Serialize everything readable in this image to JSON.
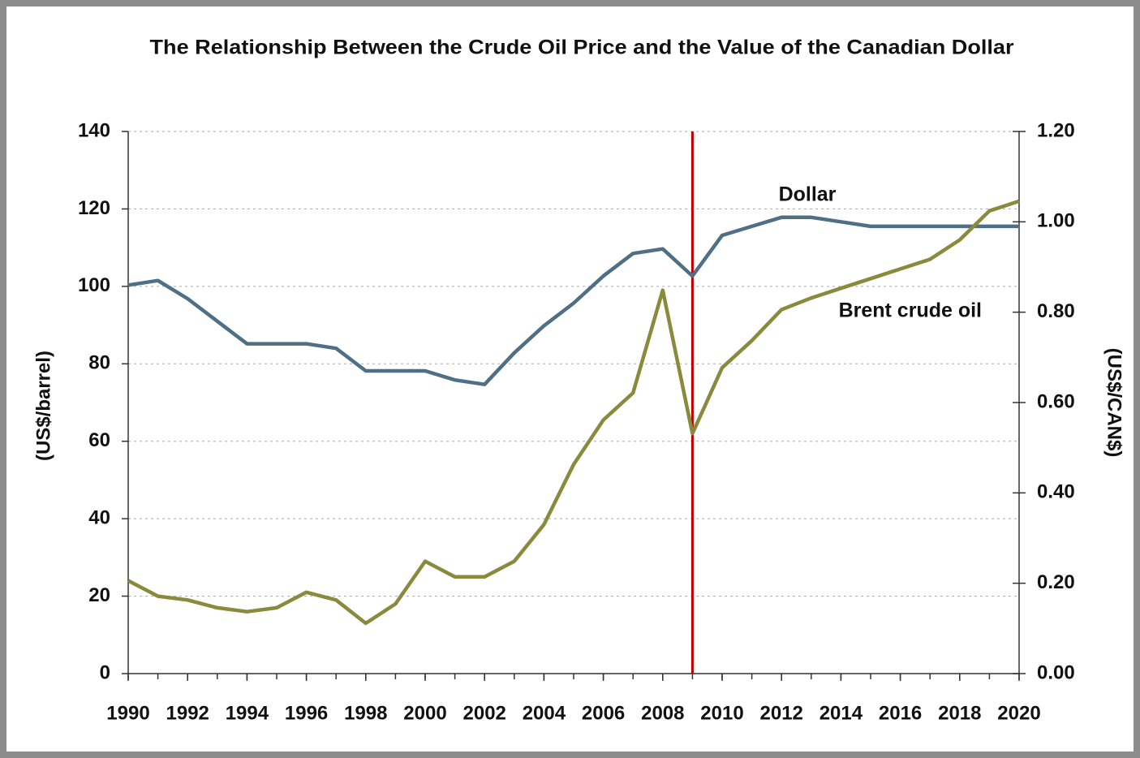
{
  "chart_data": {
    "type": "line",
    "title": "The Relationship Between the Crude Oil Price and the Value of the Canadian Dollar",
    "ylabel": "(US$/barrel)",
    "y2label": "(US$/CAN$)",
    "x": [
      1990,
      1991,
      1992,
      1993,
      1994,
      1995,
      1996,
      1997,
      1998,
      1999,
      2000,
      2001,
      2002,
      2003,
      2004,
      2005,
      2006,
      2007,
      2008,
      2009,
      2010,
      2011,
      2012,
      2013,
      2014,
      2015,
      2016,
      2017,
      2018,
      2019,
      2020
    ],
    "series": [
      {
        "name": "Dollar",
        "color": "#4f6f87",
        "axis": "y2",
        "values": [
          0.86,
          0.87,
          0.83,
          0.78,
          0.73,
          0.73,
          0.73,
          0.72,
          0.67,
          0.67,
          0.67,
          0.65,
          0.64,
          0.71,
          0.77,
          0.82,
          0.88,
          0.93,
          0.94,
          0.88,
          0.97,
          0.99,
          1.01,
          1.01,
          1.0,
          0.99,
          0.99,
          0.99,
          0.99,
          0.99,
          0.99
        ]
      },
      {
        "name": "Brent crude oil",
        "color": "#8a8a3c",
        "values": [
          24,
          20,
          19,
          17,
          16,
          17,
          21,
          19,
          13,
          18,
          29,
          25,
          25,
          29,
          38.5,
          54,
          65.5,
          72.5,
          99,
          62,
          79,
          86,
          94,
          97,
          99.5,
          102,
          104.5,
          107,
          112,
          119.5,
          122
        ]
      }
    ],
    "xlim": [
      1990,
      2020
    ],
    "xticks": [
      1990,
      1992,
      1994,
      1996,
      1998,
      2000,
      2002,
      2004,
      2006,
      2008,
      2010,
      2012,
      2014,
      2016,
      2018,
      2020
    ],
    "ylim": [
      0,
      140
    ],
    "yticks": [
      0,
      20,
      40,
      60,
      80,
      100,
      120,
      140
    ],
    "y2lim": [
      0,
      1.2
    ],
    "y2ticks": [
      {
        "value": 0,
        "label": "0.00"
      },
      {
        "value": 0.2,
        "label": "0.20"
      },
      {
        "value": 0.4,
        "label": "0.40"
      },
      {
        "value": 0.6,
        "label": "0.60"
      },
      {
        "value": 0.8,
        "label": "0.80"
      },
      {
        "value": 1.0,
        "label": "1.00"
      },
      {
        "value": 1.2,
        "label": "1.20"
      }
    ],
    "grid": true,
    "vline": {
      "x": 2009,
      "color": "#c00000"
    }
  }
}
